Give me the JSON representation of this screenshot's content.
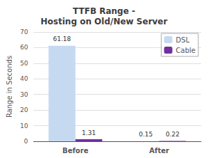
{
  "chart_data": {
    "type": "bar",
    "title": "TTFB Range -\nHosting on Old/New Server",
    "ylabel": "Range in Seconds",
    "categories": [
      "Before",
      "After"
    ],
    "series": [
      {
        "name": "DSL",
        "color": "#c5d9f1",
        "values": [
          61.18,
          0.15
        ]
      },
      {
        "name": "Cable",
        "color": "#7030a0",
        "values": [
          1.31,
          0.22
        ]
      }
    ],
    "ylim": [
      0,
      70
    ],
    "yticks": [
      0,
      10,
      20,
      30,
      40,
      50,
      60,
      70
    ],
    "grid": true,
    "legend": "upper right",
    "data_labels": true
  }
}
